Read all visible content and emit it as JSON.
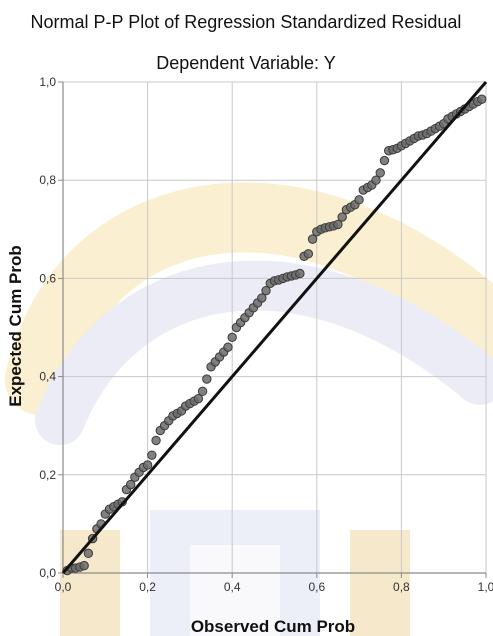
{
  "chart_data": {
    "type": "scatter",
    "title": "Normal P-P Plot of Regression Standardized Residual",
    "subtitle": "Dependent Variable: Y",
    "xlabel": "Observed Cum Prob",
    "ylabel": "Expected Cum Prob",
    "xlim": [
      0,
      1
    ],
    "ylim": [
      0,
      1
    ],
    "xticks": [
      "0,0",
      "0,2",
      "0,4",
      "0,6",
      "0,8",
      "1,0"
    ],
    "yticks": [
      "0,0",
      "0,2",
      "0,4",
      "0,6",
      "0,8",
      "1,0"
    ],
    "tick_values": [
      0,
      0.2,
      0.4,
      0.6,
      0.8,
      1.0
    ],
    "grid": true,
    "reference_line": [
      [
        0,
        0
      ],
      [
        1,
        1
      ]
    ],
    "points": [
      [
        0.01,
        0.005
      ],
      [
        0.02,
        0.01
      ],
      [
        0.03,
        0.01
      ],
      [
        0.04,
        0.012
      ],
      [
        0.05,
        0.015
      ],
      [
        0.06,
        0.04
      ],
      [
        0.07,
        0.07
      ],
      [
        0.08,
        0.09
      ],
      [
        0.09,
        0.1
      ],
      [
        0.1,
        0.12
      ],
      [
        0.11,
        0.13
      ],
      [
        0.12,
        0.135
      ],
      [
        0.13,
        0.14
      ],
      [
        0.14,
        0.145
      ],
      [
        0.15,
        0.17
      ],
      [
        0.16,
        0.18
      ],
      [
        0.17,
        0.195
      ],
      [
        0.18,
        0.205
      ],
      [
        0.19,
        0.215
      ],
      [
        0.2,
        0.22
      ],
      [
        0.21,
        0.24
      ],
      [
        0.22,
        0.27
      ],
      [
        0.23,
        0.29
      ],
      [
        0.24,
        0.3
      ],
      [
        0.25,
        0.31
      ],
      [
        0.26,
        0.32
      ],
      [
        0.27,
        0.325
      ],
      [
        0.28,
        0.33
      ],
      [
        0.29,
        0.34
      ],
      [
        0.3,
        0.345
      ],
      [
        0.31,
        0.35
      ],
      [
        0.32,
        0.355
      ],
      [
        0.33,
        0.37
      ],
      [
        0.34,
        0.395
      ],
      [
        0.35,
        0.42
      ],
      [
        0.36,
        0.43
      ],
      [
        0.37,
        0.44
      ],
      [
        0.38,
        0.45
      ],
      [
        0.39,
        0.46
      ],
      [
        0.4,
        0.48
      ],
      [
        0.41,
        0.5
      ],
      [
        0.42,
        0.51
      ],
      [
        0.43,
        0.52
      ],
      [
        0.44,
        0.53
      ],
      [
        0.45,
        0.54
      ],
      [
        0.46,
        0.55
      ],
      [
        0.47,
        0.56
      ],
      [
        0.48,
        0.575
      ],
      [
        0.49,
        0.59
      ],
      [
        0.5,
        0.595
      ],
      [
        0.51,
        0.597
      ],
      [
        0.52,
        0.6
      ],
      [
        0.53,
        0.603
      ],
      [
        0.54,
        0.605
      ],
      [
        0.55,
        0.607
      ],
      [
        0.56,
        0.61
      ],
      [
        0.57,
        0.645
      ],
      [
        0.58,
        0.65
      ],
      [
        0.59,
        0.68
      ],
      [
        0.6,
        0.695
      ],
      [
        0.61,
        0.7
      ],
      [
        0.62,
        0.703
      ],
      [
        0.63,
        0.705
      ],
      [
        0.64,
        0.707
      ],
      [
        0.65,
        0.71
      ],
      [
        0.66,
        0.725
      ],
      [
        0.67,
        0.74
      ],
      [
        0.68,
        0.745
      ],
      [
        0.69,
        0.75
      ],
      [
        0.7,
        0.76
      ],
      [
        0.71,
        0.78
      ],
      [
        0.72,
        0.785
      ],
      [
        0.73,
        0.79
      ],
      [
        0.74,
        0.8
      ],
      [
        0.75,
        0.815
      ],
      [
        0.76,
        0.84
      ],
      [
        0.77,
        0.86
      ],
      [
        0.78,
        0.862
      ],
      [
        0.79,
        0.865
      ],
      [
        0.8,
        0.87
      ],
      [
        0.81,
        0.875
      ],
      [
        0.82,
        0.88
      ],
      [
        0.83,
        0.885
      ],
      [
        0.84,
        0.89
      ],
      [
        0.85,
        0.892
      ],
      [
        0.86,
        0.895
      ],
      [
        0.87,
        0.9
      ],
      [
        0.88,
        0.905
      ],
      [
        0.89,
        0.91
      ],
      [
        0.9,
        0.915
      ],
      [
        0.91,
        0.925
      ],
      [
        0.92,
        0.93
      ],
      [
        0.93,
        0.935
      ],
      [
        0.94,
        0.94
      ],
      [
        0.95,
        0.945
      ],
      [
        0.96,
        0.95
      ],
      [
        0.97,
        0.955
      ],
      [
        0.98,
        0.96
      ],
      [
        0.99,
        0.965
      ]
    ],
    "colors": {
      "point_fill": "#6b6b6b",
      "point_stroke": "#3a3a3a",
      "reference_line": "#111111",
      "grid": "#c9c9c9",
      "axis": "#8a8a8a"
    }
  }
}
